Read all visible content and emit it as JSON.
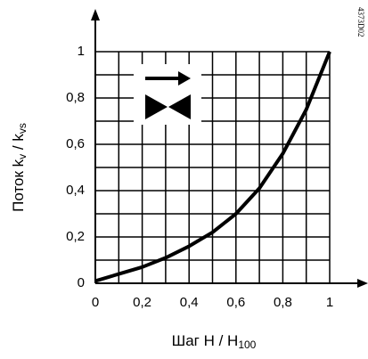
{
  "chart_data": {
    "type": "line",
    "xlabel": [
      "Шаг H / H",
      "100"
    ],
    "ylabel": [
      "Поток k",
      "v",
      " / k",
      "vs"
    ],
    "code": "4373D02",
    "x": [
      0,
      0.1,
      0.2,
      0.3,
      0.4,
      0.5,
      0.6,
      0.7,
      0.8,
      0.9,
      1
    ],
    "series": [
      {
        "color": "#000000",
        "values": [
          0.01,
          0.04,
          0.07,
          0.11,
          0.16,
          0.22,
          0.3,
          0.41,
          0.56,
          0.75,
          1
        ]
      }
    ],
    "xlim": [
      0,
      1
    ],
    "ylim": [
      0,
      1
    ],
    "xticks": [
      0,
      {
        "value": 0.2,
        "label": "0,2"
      },
      {
        "value": 0.4,
        "label": "0,4"
      },
      {
        "value": 0.6,
        "label": "0,6"
      },
      {
        "value": 0.8,
        "label": "0,8"
      },
      1
    ],
    "yticks": [
      0,
      {
        "value": 0.2,
        "label": "0,2"
      },
      {
        "value": 0.4,
        "label": "0,4"
      },
      {
        "value": 0.6,
        "label": "0,6"
      },
      {
        "value": 0.8,
        "label": "0,8"
      },
      1
    ],
    "xminorticks": [
      0.1,
      0.3,
      0.5,
      0.7,
      0.9
    ],
    "yminorticks": [
      0.1,
      0.3,
      0.5,
      0.7,
      0.9
    ],
    "grid": true
  }
}
